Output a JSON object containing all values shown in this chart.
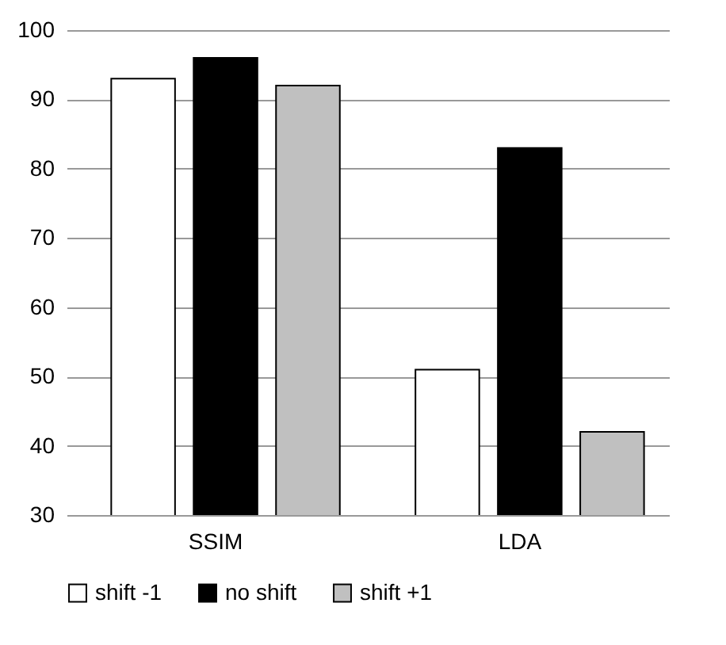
{
  "chart_data": {
    "type": "bar",
    "categories": [
      "SSIM",
      "LDA"
    ],
    "series": [
      {
        "name": "shift -1",
        "color": "#ffffff",
        "values": [
          93,
          51
        ]
      },
      {
        "name": "no shift",
        "color": "#000000",
        "values": [
          96,
          83
        ]
      },
      {
        "name": "shift +1",
        "color": "#c0c0c0",
        "values": [
          92,
          42
        ]
      }
    ],
    "ylim": [
      30,
      100
    ],
    "yticks": [
      30,
      40,
      50,
      60,
      70,
      80,
      90,
      100
    ],
    "grid": "y",
    "legend": "bottom"
  }
}
